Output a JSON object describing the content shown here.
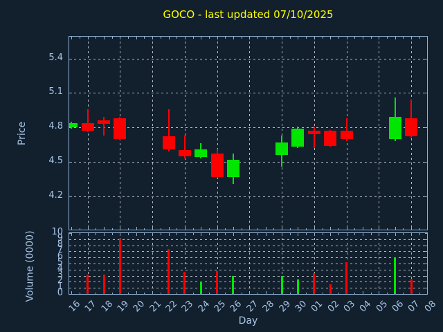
{
  "title": "GOCO - last updated 07/10/2025",
  "colors": {
    "background": "#12202e",
    "axis": "#8fb2d4",
    "tick_label": "#a9c6e8",
    "title": "#ffff00",
    "grid": "#b4bac2",
    "up": "#00e600",
    "down": "#ff0000"
  },
  "chart_data": {
    "type": "candlestick",
    "title": "GOCO - last updated 07/10/2025",
    "xlabel": "Day",
    "x_categories": [
      "16",
      "17",
      "18",
      "19",
      "20",
      "21",
      "22",
      "23",
      "24",
      "25",
      "26",
      "27",
      "28",
      "29",
      "30",
      "01",
      "02",
      "03",
      "04",
      "05",
      "06",
      "07",
      "08"
    ],
    "price_panel": {
      "ylabel": "Price",
      "ylim": [
        3.91,
        5.59
      ],
      "yticks": [
        "5.4",
        "5.1",
        "4.8",
        "4.5",
        "4.2"
      ],
      "ytick_values": [
        5.4,
        5.1,
        4.8,
        4.5,
        4.2
      ],
      "grid": "on",
      "grid_x_on_days": [
        "17",
        "19",
        "21",
        "23",
        "25",
        "27",
        "29",
        "01",
        "03",
        "05",
        "07"
      ]
    },
    "volume_panel": {
      "ylabel": "Volume (0000)",
      "ylim": [
        0,
        10
      ],
      "yticks": [
        "10",
        "9",
        "8",
        "7",
        "6",
        "5",
        "4",
        "3",
        "2",
        "1",
        "0"
      ],
      "ytick_values": [
        10,
        9,
        8,
        7,
        6,
        5,
        4,
        3,
        2,
        1,
        0
      ],
      "grid": "on"
    },
    "candles": [
      {
        "day": "16",
        "open": 4.8,
        "high": 4.85,
        "low": 4.79,
        "close": 4.84,
        "volume": 0.0
      },
      {
        "day": "17",
        "open": 4.84,
        "high": 4.96,
        "low": 4.76,
        "close": 4.77,
        "volume": 3.2
      },
      {
        "day": "18",
        "open": 4.86,
        "high": 4.89,
        "low": 4.73,
        "close": 4.83,
        "volume": 3.2
      },
      {
        "day": "19",
        "open": 4.88,
        "high": 4.89,
        "low": 4.69,
        "close": 4.7,
        "volume": 9.1
      },
      {
        "day": "22",
        "open": 4.72,
        "high": 4.96,
        "low": 4.59,
        "close": 4.61,
        "volume": 7.4
      },
      {
        "day": "23",
        "open": 4.6,
        "high": 4.73,
        "low": 4.53,
        "close": 4.55,
        "volume": 3.6
      },
      {
        "day": "24",
        "open": 4.54,
        "high": 4.66,
        "low": 4.53,
        "close": 4.61,
        "volume": 2.1
      },
      {
        "day": "25",
        "open": 4.57,
        "high": 4.61,
        "low": 4.36,
        "close": 4.37,
        "volume": 3.7
      },
      {
        "day": "26",
        "open": 4.37,
        "high": 4.57,
        "low": 4.31,
        "close": 4.52,
        "volume": 2.9
      },
      {
        "day": "29",
        "open": 4.56,
        "high": 4.73,
        "low": 4.46,
        "close": 4.67,
        "volume": 2.9
      },
      {
        "day": "30",
        "open": 4.63,
        "high": 4.81,
        "low": 4.62,
        "close": 4.79,
        "volume": 2.4
      },
      {
        "day": "01",
        "open": 4.77,
        "high": 4.81,
        "low": 4.62,
        "close": 4.74,
        "volume": 3.4
      },
      {
        "day": "02",
        "open": 4.77,
        "high": 4.78,
        "low": 4.63,
        "close": 4.64,
        "volume": 1.6
      },
      {
        "day": "03",
        "open": 4.77,
        "high": 4.88,
        "low": 4.68,
        "close": 4.7,
        "volume": 5.2
      },
      {
        "day": "06",
        "open": 4.7,
        "high": 5.06,
        "low": 4.68,
        "close": 4.89,
        "volume": 6.0
      },
      {
        "day": "07",
        "open": 4.88,
        "high": 5.04,
        "low": 4.71,
        "close": 4.72,
        "volume": 2.4
      }
    ]
  }
}
